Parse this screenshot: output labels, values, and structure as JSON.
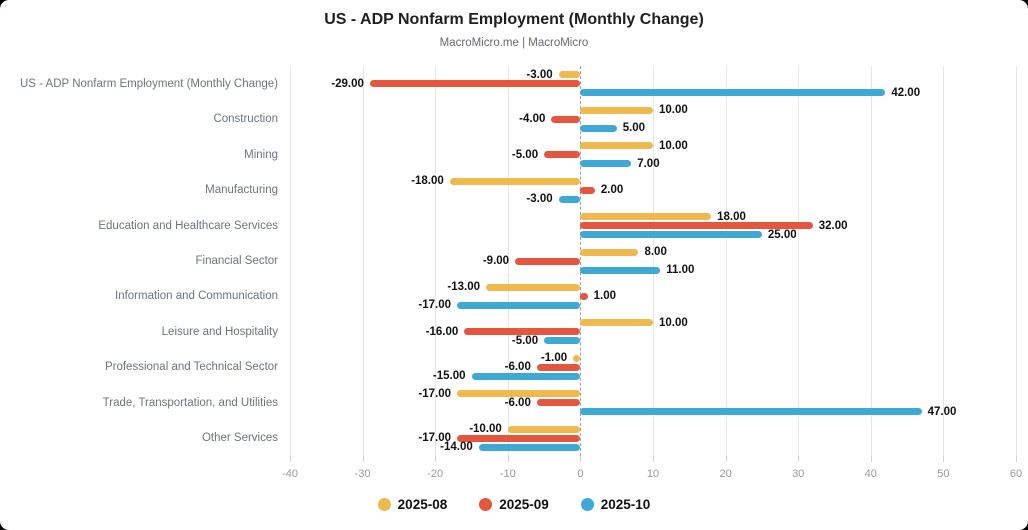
{
  "header": {
    "title": "US - ADP Nonfarm Employment (Monthly Change)",
    "subtitle": "MacroMicro.me | MacroMicro"
  },
  "chart_data": {
    "type": "bar",
    "orientation": "horizontal",
    "title": "US - ADP Nonfarm Employment (Monthly Change)",
    "subtitle": "MacroMicro.me | MacroMicro",
    "categories": [
      "US - ADP Nonfarm Employment (Monthly Change)",
      "Construction",
      "Mining",
      "Manufacturing",
      "Education and Healthcare Services",
      "Financial Sector",
      "Information and Communication",
      "Leisure and Hospitality",
      "Professional and Technical Sector",
      "Trade, Transportation, and Utilities",
      "Other Services"
    ],
    "series": [
      {
        "name": "2025-08",
        "color": "#F0B94D",
        "values": [
          -3,
          10,
          10,
          -18,
          18,
          8,
          -13,
          10,
          -1,
          -17,
          -10
        ]
      },
      {
        "name": "2025-09",
        "color": "#E4573E",
        "values": [
          -29,
          -4,
          -5,
          2,
          32,
          -9,
          1,
          -16,
          -6,
          -6,
          -17
        ]
      },
      {
        "name": "2025-10",
        "color": "#3FA9D5",
        "values": [
          42,
          5,
          7,
          -3,
          25,
          11,
          -17,
          -5,
          -15,
          47,
          -14
        ]
      }
    ],
    "xlim": [
      -40,
      60
    ],
    "xticks": [
      -40,
      -30,
      -20,
      -10,
      0,
      10,
      20,
      30,
      40,
      50,
      60
    ],
    "value_label_decimals": 2,
    "grid": true,
    "zero_line": "dashed",
    "legend_position": "bottom",
    "colors": {
      "grid": "#e6e6e6",
      "zero_line": "#9aa0a6",
      "tick_label": "#999999",
      "category_label": "#6b7580",
      "value_label": "#111111",
      "background": "#ffffff",
      "page_background": "#000000"
    }
  }
}
